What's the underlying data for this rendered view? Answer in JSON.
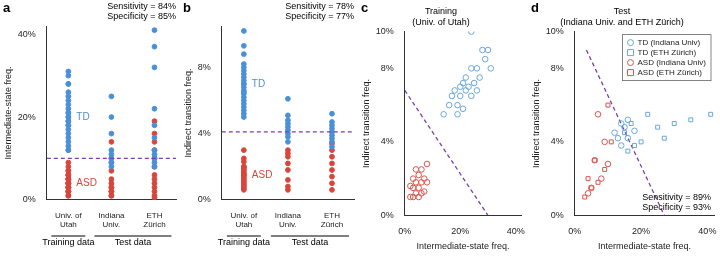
{
  "chart_data": [
    {
      "panel": "a",
      "type": "strip",
      "y_label": "Intermediate-state freq.",
      "categories": [
        "Univ. of Utah",
        "Indiana Univ.",
        "ETH Zürich"
      ],
      "groups": [
        {
          "label": "Training data",
          "categories": [
            "Univ. of Utah"
          ]
        },
        {
          "label": "Test data",
          "categories": [
            "Indiana Univ.",
            "ETH Zürich"
          ]
        }
      ],
      "ylim": [
        0,
        42
      ],
      "yticks": [
        {
          "value": 0,
          "label": "0%"
        },
        {
          "value": 20,
          "label": "20%"
        },
        {
          "value": 40,
          "label": "40%"
        }
      ],
      "threshold": {
        "value": 10,
        "color": "#7b3fa8",
        "line_style": "dashed"
      },
      "annotations": [
        "Sensitivity = 84%",
        "Specificity = 85%"
      ],
      "grid": false,
      "series": [
        {
          "name": "TD",
          "color": "#4a90d9",
          "marker": "circle",
          "values": [
            [
              31,
              30,
              28,
              28,
              26,
              25,
              24,
              23,
              22,
              21,
              21,
              20,
              20,
              19,
              19,
              18,
              18,
              17,
              16,
              15,
              14,
              13,
              12,
              12
            ],
            [
              25,
              20,
              16,
              12,
              11,
              10,
              10,
              9,
              9,
              8
            ],
            [
              41,
              37,
              32,
              22,
              18,
              15,
              12,
              11,
              10,
              10,
              9,
              8
            ]
          ]
        },
        {
          "name": "ASD",
          "color": "#d9453b",
          "marker": "circle",
          "values": [
            [
              9,
              8,
              7,
              7,
              6,
              6,
              6,
              5,
              5,
              5,
              5,
              4,
              4,
              4,
              4,
              3,
              3,
              3,
              3,
              2,
              2,
              2,
              1,
              1
            ],
            [
              14,
              7,
              5,
              4,
              3,
              3,
              2,
              2,
              1,
              1
            ],
            [
              19,
              16,
              14,
              12,
              10,
              8,
              6,
              5,
              4,
              3,
              2,
              1,
              0.5
            ]
          ]
        }
      ]
    },
    {
      "panel": "b",
      "type": "strip",
      "y_label": "Indirect transition freq.",
      "categories": [
        "Univ. of Utah",
        "Indiana Univ.",
        "ETH Zürich"
      ],
      "groups": [
        {
          "label": "Training data",
          "categories": [
            "Univ. of Utah"
          ]
        },
        {
          "label": "Test data",
          "categories": [
            "Indiana Univ.",
            "ETH Zürich"
          ]
        }
      ],
      "ylim": [
        0,
        10.5
      ],
      "yticks": [
        {
          "value": 0,
          "label": "0%"
        },
        {
          "value": 4,
          "label": "4%"
        },
        {
          "value": 8,
          "label": "8%"
        }
      ],
      "threshold": {
        "value": 4.1,
        "color": "#7b3fa8",
        "line_style": "dashed"
      },
      "annotations": [
        "Sensitivity = 78%",
        "Specificity = 77%"
      ],
      "grid": false,
      "series": [
        {
          "name": "TD",
          "color": "#4a90d9",
          "marker": "circle",
          "values": [
            [
              10.2,
              9.3,
              8.8,
              8.2,
              8,
              7.8,
              7.6,
              7.4,
              7.2,
              7,
              7,
              6.8,
              6.6,
              6.5,
              6.4,
              6.2,
              6,
              5.8,
              5.6,
              5.4,
              5.2,
              5
            ],
            [
              6.1,
              5.1,
              4.8,
              4.6,
              4.4,
              4.2,
              4,
              3.8,
              3.5
            ],
            [
              5.2,
              4.7,
              4.5,
              4.3,
              4.1,
              3.9,
              3.7,
              3.5,
              3.2
            ]
          ]
        },
        {
          "name": "ASD",
          "color": "#d9453b",
          "marker": "circle",
          "values": [
            [
              3,
              2.5,
              2.3,
              2,
              2,
              1.9,
              1.8,
              1.7,
              1.6,
              1.5,
              1.5,
              1.4,
              1.3,
              1.2,
              1.1,
              1,
              0.9,
              0.8,
              0.7,
              0.6
            ],
            [
              3,
              2.8,
              2.6,
              2.2,
              1.8,
              1.2,
              0.8,
              0.6
            ],
            [
              3.4,
              3,
              2.6,
              2.2,
              1.8,
              1.4,
              1,
              0.6
            ]
          ]
        }
      ]
    },
    {
      "panel": "c",
      "type": "scatter",
      "title": [
        "Training",
        "(Univ. of Utah)"
      ],
      "x_label": "Intermediate-state freq.",
      "y_label": "Indirect transition freq.",
      "xlim": [
        0,
        42
      ],
      "xticks": [
        {
          "value": 0,
          "label": "0%"
        },
        {
          "value": 20,
          "label": "20%"
        },
        {
          "value": 40,
          "label": "40%"
        }
      ],
      "ylim": [
        0,
        10
      ],
      "yticks": [
        {
          "value": 0,
          "label": "0%"
        },
        {
          "value": 4,
          "label": "4%"
        },
        {
          "value": 8,
          "label": "8%"
        },
        {
          "value": 10,
          "label": "10%"
        }
      ],
      "grid": false,
      "boundary": {
        "x": [
          0,
          30
        ],
        "y": [
          6.8,
          0
        ],
        "color": "#7b3fa8",
        "line_style": "dashed"
      },
      "series": [
        {
          "name": "TD",
          "color": "#6aa6dc",
          "marker": "open_circle",
          "x": [
            14,
            16,
            17,
            18,
            19,
            20,
            20,
            21,
            22,
            22,
            23,
            24,
            24,
            25,
            26,
            27,
            28,
            29,
            30,
            31,
            24,
            19,
            26,
            21
          ],
          "values": [
            5.5,
            6,
            6.5,
            6.8,
            6,
            7,
            6.5,
            7.2,
            6.8,
            7.5,
            7,
            6.5,
            8,
            7.2,
            8,
            7.5,
            9,
            8.5,
            9,
            8,
            10,
            5.5,
            6.8,
            5.8
          ]
        },
        {
          "name": "ASD",
          "color": "#d9574f",
          "marker": "open_circle",
          "x": [
            2,
            3,
            3,
            4,
            4,
            5,
            5,
            6,
            6,
            7,
            7,
            8,
            4,
            3,
            5,
            6,
            2,
            8
          ],
          "values": [
            1,
            1.5,
            2,
            1.2,
            1.8,
            1.5,
            2.2,
            1.8,
            2.5,
            2,
            1.3,
            2.8,
            2.5,
            1,
            1,
            1.2,
            1.6,
            1.8
          ]
        }
      ]
    },
    {
      "panel": "d",
      "type": "scatter",
      "title": [
        "Test",
        "(Indiana Univ. and ETH Zürich)"
      ],
      "x_label": "Intermediate-state freq.",
      "y_label": "Indirect transition freq.",
      "xlim": [
        0,
        42
      ],
      "xticks": [
        {
          "value": 0,
          "label": "0%"
        },
        {
          "value": 20,
          "label": "20%"
        },
        {
          "value": 40,
          "label": "40%"
        }
      ],
      "ylim": [
        0,
        10
      ],
      "yticks": [
        {
          "value": 0,
          "label": "0%"
        },
        {
          "value": 4,
          "label": "4%"
        },
        {
          "value": 8,
          "label": "8%"
        },
        {
          "value": 10,
          "label": "10%"
        }
      ],
      "grid": false,
      "legend": "top right",
      "annotations": [
        "Sensitivity = 89%",
        "Specificity = 93%"
      ],
      "boundary": {
        "x": [
          3.5,
          27
        ],
        "y": [
          9,
          0
        ],
        "color": "#7b3fa8",
        "line_style": "dashed"
      },
      "series": [
        {
          "name": "TD (Indiana Univ)",
          "color": "#6aa6dc",
          "marker": "open_circle",
          "x": [
            12,
            14,
            15,
            16,
            18,
            14,
            16,
            13
          ],
          "values": [
            4.5,
            5,
            4.8,
            4.2,
            4.6,
            3.8,
            5.2,
            4.2
          ]
        },
        {
          "name": "TD (ETH Zürich)",
          "color": "#6aa6dc",
          "marker": "open_square",
          "x": [
            15,
            17,
            20,
            22,
            25,
            30,
            35,
            41,
            27,
            18,
            16
          ],
          "values": [
            4.5,
            5,
            4,
            5.5,
            4.8,
            5,
            5.2,
            5.5,
            4.2,
            3.8,
            3.5
          ]
        },
        {
          "name": "ASD (Indiana Univ)",
          "color": "#d9574f",
          "marker": "open_circle",
          "x": [
            6,
            7,
            8,
            5,
            9,
            4,
            10
          ],
          "values": [
            3,
            5.5,
            2,
            1.5,
            4,
            1.2,
            2.8
          ]
        },
        {
          "name": "ASD (ETH Zürich)",
          "color": "#d9574f",
          "marker": "open_square",
          "x": [
            3,
            5,
            7,
            9,
            11,
            10,
            6,
            4
          ],
          "values": [
            1,
            1.5,
            1.8,
            2.5,
            4,
            6,
            3,
            2
          ]
        }
      ]
    }
  ]
}
